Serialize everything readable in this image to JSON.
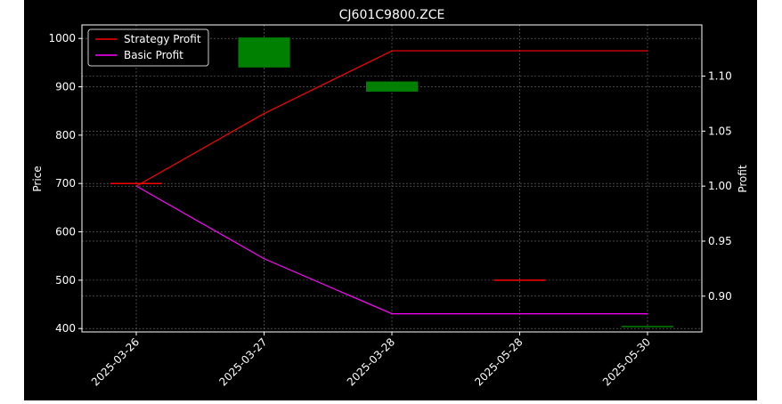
{
  "chart_data": {
    "type": "line",
    "title": "CJ601C9800.ZCE",
    "xlabel": "",
    "ylabel": "Price",
    "y2label": "Profit",
    "categories": [
      "2025-03-26",
      "2025-03-27",
      "2025-03-28",
      "2025-05-28",
      "2025-05-30"
    ],
    "ylim": [
      393,
      1028
    ],
    "y2lim": [
      0.8675,
      1.1465
    ],
    "yticks": [
      400,
      500,
      600,
      700,
      800,
      900,
      1000
    ],
    "y2ticks": [
      "0.90",
      "0.95",
      "1.00",
      "1.05",
      "1.10"
    ],
    "grid": true,
    "legend_position": "top-left",
    "candles": [
      {
        "x": "2025-03-26",
        "open": 700,
        "close": 700,
        "color": "#ff0000"
      },
      {
        "x": "2025-03-27",
        "open": 940,
        "close": 1002,
        "color": "#008000"
      },
      {
        "x": "2025-03-28",
        "open": 890,
        "close": 911,
        "color": "#008000"
      },
      {
        "x": "2025-05-28",
        "open": 500,
        "close": 500,
        "color": "#ff0000"
      },
      {
        "x": "2025-05-30",
        "open": 402,
        "close": 404,
        "color": "#008000"
      }
    ],
    "series": [
      {
        "name": "Strategy Profit",
        "axis": "right",
        "color": "#ff0000",
        "values": [
          1.0,
          1.066,
          1.123,
          1.123,
          1.123
        ]
      },
      {
        "name": "Basic Profit",
        "axis": "right",
        "color": "#ff00ff",
        "values": [
          1.0,
          0.934,
          0.884,
          0.884,
          0.884
        ]
      }
    ],
    "colors": {
      "background": "#000000",
      "text": "#ffffff",
      "grid": "#808080"
    }
  }
}
